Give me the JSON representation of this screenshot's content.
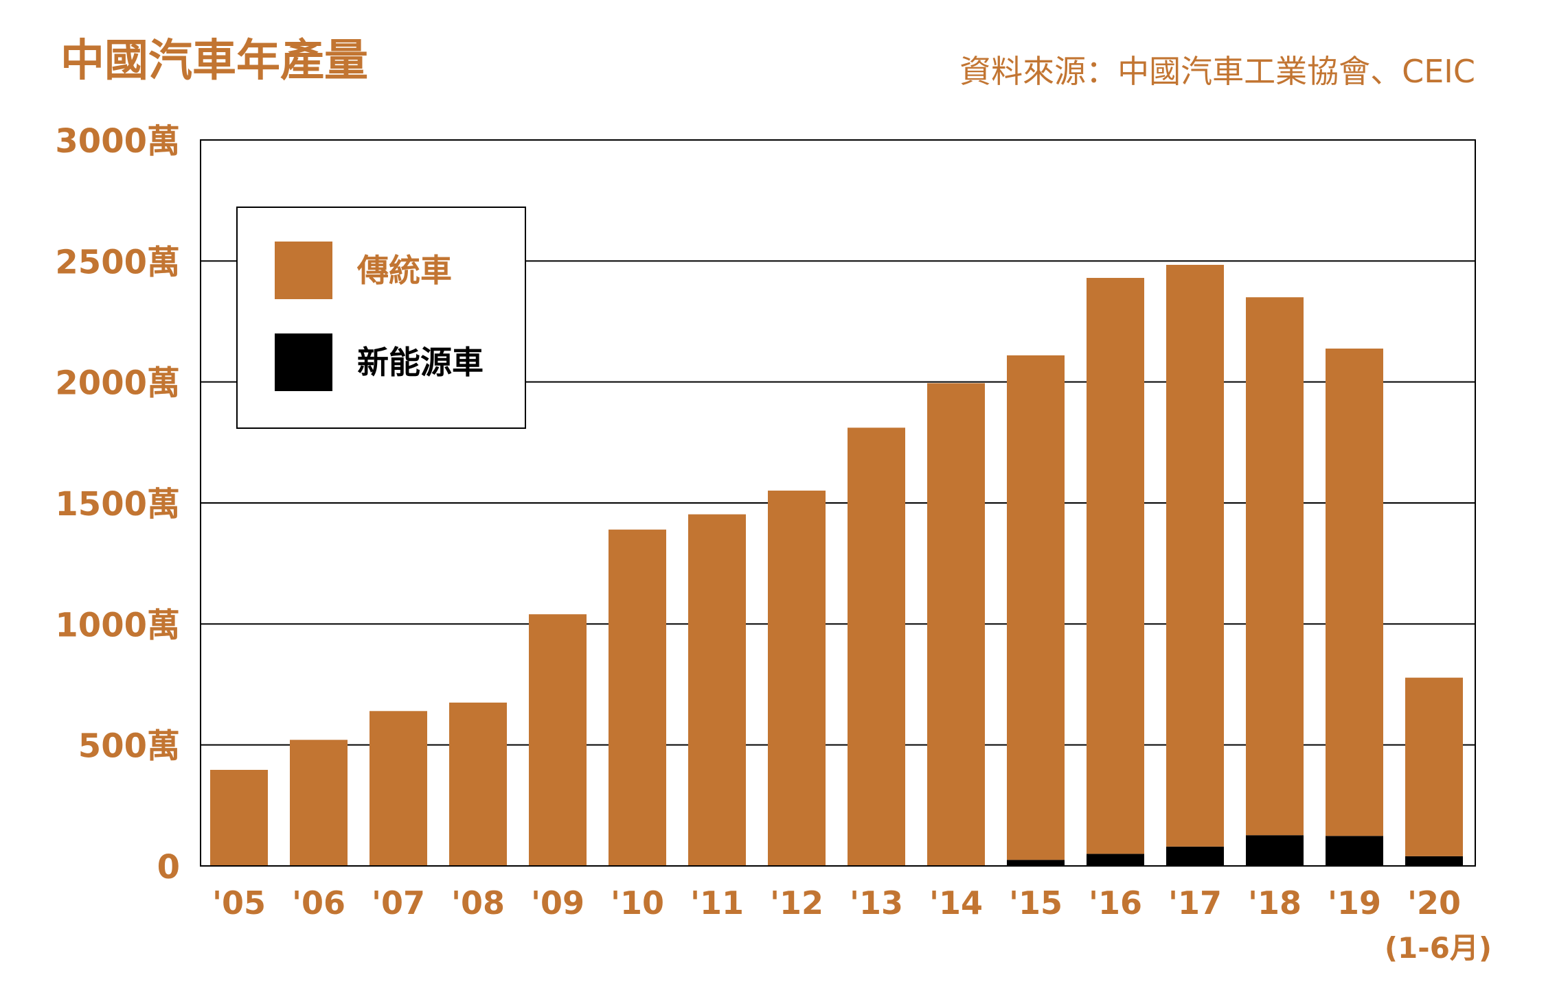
{
  "colors": {
    "traditional": "#C27532",
    "nev": "#000000",
    "text_accent": "#C27532",
    "frame": "#000000",
    "background": "#ffffff"
  },
  "chart_data": {
    "type": "bar",
    "stacked": true,
    "title": "中國汽車年產量",
    "source": "資料來源：中國汽車工業協會、CEIC",
    "categories": [
      "'05",
      "'06",
      "'07",
      "'08",
      "'09",
      "'10",
      "'11",
      "'12",
      "'13",
      "'14",
      "'15",
      "'16",
      "'17",
      "'18",
      "'19",
      "'20"
    ],
    "category_sublabels": {
      "'20": "(1-6月)"
    },
    "ylim": [
      0,
      3000
    ],
    "yticks": [
      0,
      500,
      1000,
      1500,
      2000,
      2500,
      3000
    ],
    "ytick_labels": [
      "0",
      "500萬",
      "1000萬",
      "1500萬",
      "2000萬",
      "2500萬",
      "3000萬"
    ],
    "grid": true,
    "legend_position": "top-left",
    "series": [
      {
        "name": "新能源車",
        "color": "#000000",
        "values": [
          0,
          0,
          0,
          0,
          0,
          0,
          0,
          0,
          0,
          0,
          25,
          50,
          80,
          127,
          124,
          40
        ]
      },
      {
        "name": "傳統車",
        "color": "#C27532",
        "values": [
          397,
          521,
          640,
          675,
          1040,
          1390,
          1453,
          1551,
          1811,
          1995,
          2085,
          2380,
          2404,
          2223,
          2014,
          738
        ]
      }
    ]
  }
}
